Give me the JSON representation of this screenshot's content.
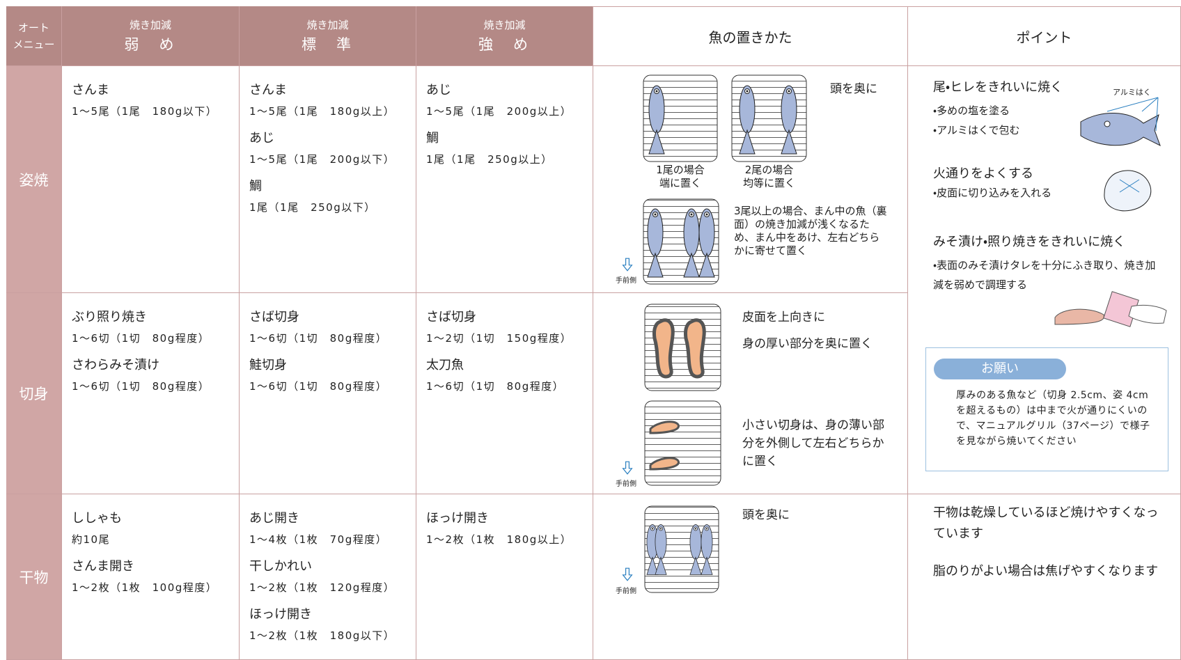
{
  "header": {
    "auto_menu": [
      "オート",
      "メニュー"
    ],
    "columns": [
      {
        "label": "焼き加減",
        "level": "弱　め"
      },
      {
        "label": "焼き加減",
        "level": "標　準"
      },
      {
        "label": "焼き加減",
        "level": "強　め"
      }
    ],
    "placement": "魚の置きかた",
    "point": "ポイント"
  },
  "rows": [
    {
      "menu": "姿焼",
      "cells": [
        [
          {
            "name": "さんま",
            "detail": "1～5尾（1尾　180g以下）"
          }
        ],
        [
          {
            "name": "さんま",
            "detail": "1～5尾（1尾　180g以上）"
          },
          {
            "name": "あじ",
            "detail": "1～5尾（1尾　200g以下）"
          },
          {
            "name": "鯛",
            "detail": "1尾（1尾　250g以下）"
          }
        ],
        [
          {
            "name": "あじ",
            "detail": "1～5尾（1尾　200g以上）"
          },
          {
            "name": "鯛",
            "detail": "1尾（1尾　250g以上）"
          }
        ]
      ]
    },
    {
      "menu": "切身",
      "cells": [
        [
          {
            "name": "ぶり照り焼き",
            "detail": "1～6切（1切　80g程度）"
          },
          {
            "name": "さわらみそ漬け",
            "detail": "1～6切（1切　80g程度）"
          }
        ],
        [
          {
            "name": "さば切身",
            "detail": "1～6切（1切　80g程度）"
          },
          {
            "name": "鮭切身",
            "detail": "1～6切（1切　80g程度）"
          }
        ],
        [
          {
            "name": "さば切身",
            "detail": "1～2切（1切　150g程度）"
          },
          {
            "name": "太刀魚",
            "detail": "1～6切（1切　80g程度）"
          }
        ]
      ]
    },
    {
      "menu": "干物",
      "cells": [
        [
          {
            "name": "ししゃも",
            "detail": "約10尾"
          },
          {
            "name": "さんま開き",
            "detail": "1～2枚（1枚　100g程度）"
          }
        ],
        [
          {
            "name": "あじ開き",
            "detail": "1～4枚（1枚　70g程度）"
          },
          {
            "name": "干しかれい",
            "detail": "1～2枚（1枚　120g程度）"
          },
          {
            "name": "ほっけ開き",
            "detail": "1～2枚（1枚　180g以下）"
          }
        ],
        [
          {
            "name": "ほっけ開き",
            "detail": "1～2枚（1枚　180g以上）"
          }
        ]
      ]
    }
  ],
  "placement": {
    "sugata": {
      "head_back": "頭を奥に",
      "one": [
        "1尾の場合",
        "端に置く"
      ],
      "two": [
        "2尾の場合",
        "均等に置く"
      ],
      "three": "3尾以上の場合、まん中の魚（裏面）の焼き加減が浅くなるため、まん中をあけ、左右どちらかに寄せて置く",
      "front": "手前側"
    },
    "kirimi": {
      "skin_up": "皮面を上向きに",
      "thick_back": "身の厚い部分を奥に置く",
      "small": "小さい切身は、身の薄い部分を外側して左右どちらかに置く",
      "front": "手前側"
    },
    "himono": {
      "head_back": "頭を奥に",
      "front": "手前側"
    }
  },
  "points": {
    "sugata": {
      "tail_title": "尾・ヒレをきれいに焼く",
      "tail_items": [
        "・多めの塩を塗る",
        "・アルミはくで包む"
      ],
      "foil": "アルミはく",
      "heat_title": "火通りをよくする",
      "heat_item": "・皮面に切り込みを入れる",
      "miso_title": "みそ漬け・照り焼きをきれいに焼く",
      "miso_item": "・表面のみそ漬けタレを十分にふき取り、焼き加減を弱めで調理する"
    },
    "request": {
      "title": "お願い",
      "text": "厚みのある魚など（切身 2.5cm、姿 4cmを超えるもの）は中まで火が通りにくいので、マニュアルグリル（37ページ）で様子を見ながら焼いてください"
    },
    "himono": [
      "干物は乾燥しているほど焼けやすくなっています",
      "脂のりがよい場合は焦げやすくなります"
    ]
  }
}
